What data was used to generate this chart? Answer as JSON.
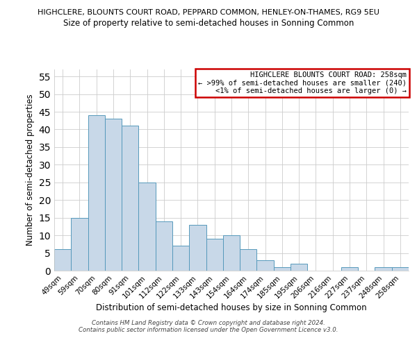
{
  "title_main": "HIGHCLERE, BLOUNTS COURT ROAD, PEPPARD COMMON, HENLEY-ON-THAMES, RG9 5EU",
  "title_sub": "Size of property relative to semi-detached houses in Sonning Common",
  "xlabel": "Distribution of semi-detached houses by size in Sonning Common",
  "ylabel": "Number of semi-detached properties",
  "bar_labels": [
    "49sqm",
    "59sqm",
    "70sqm",
    "80sqm",
    "91sqm",
    "101sqm",
    "112sqm",
    "122sqm",
    "133sqm",
    "143sqm",
    "154sqm",
    "164sqm",
    "174sqm",
    "185sqm",
    "195sqm",
    "206sqm",
    "216sqm",
    "227sqm",
    "237sqm",
    "248sqm",
    "258sqm"
  ],
  "bar_values": [
    6,
    15,
    44,
    43,
    41,
    25,
    14,
    7,
    13,
    9,
    10,
    6,
    3,
    1,
    2,
    0,
    0,
    1,
    0,
    1,
    1
  ],
  "bar_color": "#c8d8e8",
  "bar_edge_color": "#5599bb",
  "ylim": [
    0,
    57
  ],
  "yticks": [
    0,
    5,
    10,
    15,
    20,
    25,
    30,
    35,
    40,
    45,
    50,
    55
  ],
  "box_text_line1": "HIGHCLERE BLOUNTS COURT ROAD: 258sqm",
  "box_text_line2": "← >99% of semi-detached houses are smaller (240)",
  "box_text_line3": "<1% of semi-detached houses are larger (0) →",
  "box_edge_color": "#cc0000",
  "footer_line1": "Contains HM Land Registry data © Crown copyright and database right 2024.",
  "footer_line2": "Contains public sector information licensed under the Open Government Licence v3.0.",
  "background_color": "#ffffff",
  "grid_color": "#cccccc"
}
